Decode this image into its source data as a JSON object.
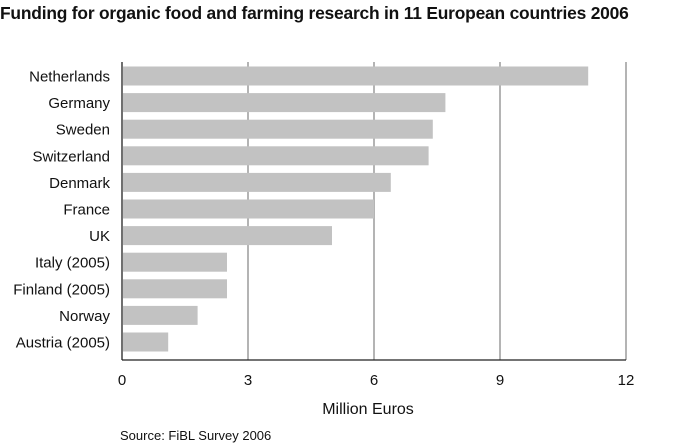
{
  "chart_data": {
    "type": "bar",
    "orientation": "horizontal",
    "title": "Funding for organic food and farming research in 11 European countries 2006",
    "categories": [
      "Netherlands",
      "Germany",
      "Sweden",
      "Switzerland",
      "Denmark",
      "France",
      "UK",
      "Italy (2005)",
      "Finland (2005)",
      "Norway",
      "Austria (2005)"
    ],
    "values": [
      11.1,
      7.7,
      7.4,
      7.3,
      6.4,
      6.0,
      5.0,
      2.5,
      2.5,
      1.8,
      1.1
    ],
    "xlabel": "Million Euros",
    "ylabel": "",
    "xlim": [
      0,
      12
    ],
    "xticks": [
      "0",
      "3",
      "6",
      "9",
      "12"
    ],
    "grid": "vertical",
    "bar_color": "#c2c2c2",
    "source": "Source: FiBL Survey 2006"
  }
}
